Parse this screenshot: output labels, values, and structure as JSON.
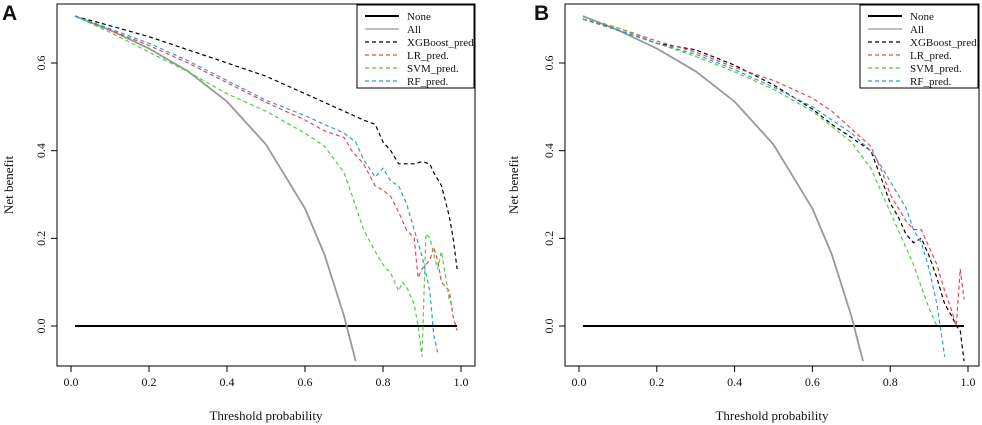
{
  "chart_data": [
    {
      "panel": "A",
      "type": "line",
      "xlabel": "Threshold probability",
      "ylabel": "Net benefit",
      "xlim": [
        0.0,
        1.0
      ],
      "ylim": [
        -0.08,
        0.72
      ],
      "x_ticks": [
        "0.0",
        "0.2",
        "0.4",
        "0.6",
        "0.8",
        "1.0"
      ],
      "y_ticks": [
        "0.0",
        "0.2",
        "0.4",
        "0.6"
      ],
      "legend": [
        "None",
        "All",
        "XGBoost_pred.",
        "LR_pred.",
        "SVM_pred.",
        "RF_pred."
      ],
      "series": [
        {
          "name": "None",
          "color": "#000000",
          "dash": "solid",
          "points": [
            [
              0.01,
              0.0
            ],
            [
              0.99,
              0.0
            ]
          ]
        },
        {
          "name": "All",
          "color": "#999999",
          "dash": "solid",
          "points": [
            [
              0.01,
              0.707
            ],
            [
              0.1,
              0.675
            ],
            [
              0.2,
              0.633
            ],
            [
              0.3,
              0.581
            ],
            [
              0.4,
              0.512
            ],
            [
              0.5,
              0.414
            ],
            [
              0.6,
              0.268
            ],
            [
              0.65,
              0.163
            ],
            [
              0.7,
              0.023
            ],
            [
              0.73,
              -0.08
            ]
          ]
        },
        {
          "name": "XGBoost_pred.",
          "color": "#000000",
          "dash": "dashed",
          "points": [
            [
              0.01,
              0.707
            ],
            [
              0.1,
              0.685
            ],
            [
              0.2,
              0.66
            ],
            [
              0.3,
              0.63
            ],
            [
              0.4,
              0.6
            ],
            [
              0.5,
              0.57
            ],
            [
              0.6,
              0.53
            ],
            [
              0.65,
              0.51
            ],
            [
              0.7,
              0.49
            ],
            [
              0.75,
              0.47
            ],
            [
              0.78,
              0.46
            ],
            [
              0.8,
              0.42
            ],
            [
              0.82,
              0.4
            ],
            [
              0.84,
              0.37
            ],
            [
              0.86,
              0.37
            ],
            [
              0.88,
              0.37
            ],
            [
              0.9,
              0.375
            ],
            [
              0.92,
              0.37
            ],
            [
              0.93,
              0.35
            ],
            [
              0.95,
              0.32
            ],
            [
              0.97,
              0.25
            ],
            [
              0.98,
              0.2
            ],
            [
              0.99,
              0.13
            ]
          ]
        },
        {
          "name": "LR_pred.",
          "color": "#e8474f",
          "dash": "dashed",
          "points": [
            [
              0.01,
              0.707
            ],
            [
              0.1,
              0.675
            ],
            [
              0.2,
              0.64
            ],
            [
              0.3,
              0.6
            ],
            [
              0.4,
              0.555
            ],
            [
              0.5,
              0.51
            ],
            [
              0.6,
              0.47
            ],
            [
              0.65,
              0.445
            ],
            [
              0.7,
              0.43
            ],
            [
              0.72,
              0.4
            ],
            [
              0.75,
              0.37
            ],
            [
              0.78,
              0.32
            ],
            [
              0.8,
              0.31
            ],
            [
              0.82,
              0.295
            ],
            [
              0.84,
              0.26
            ],
            [
              0.86,
              0.22
            ],
            [
              0.88,
              0.2
            ],
            [
              0.89,
              0.11
            ],
            [
              0.9,
              0.13
            ],
            [
              0.92,
              0.15
            ],
            [
              0.93,
              0.18
            ],
            [
              0.94,
              0.15
            ],
            [
              0.95,
              0.1
            ],
            [
              0.97,
              0.08
            ],
            [
              0.98,
              0.02
            ],
            [
              0.99,
              -0.01
            ]
          ]
        },
        {
          "name": "SVM_pred.",
          "color": "#55cc44",
          "dash": "dashed",
          "points": [
            [
              0.01,
              0.707
            ],
            [
              0.1,
              0.67
            ],
            [
              0.2,
              0.625
            ],
            [
              0.3,
              0.58
            ],
            [
              0.4,
              0.53
            ],
            [
              0.5,
              0.49
            ],
            [
              0.6,
              0.44
            ],
            [
              0.65,
              0.41
            ],
            [
              0.7,
              0.35
            ],
            [
              0.72,
              0.3
            ],
            [
              0.75,
              0.22
            ],
            [
              0.78,
              0.17
            ],
            [
              0.8,
              0.14
            ],
            [
              0.82,
              0.12
            ],
            [
              0.84,
              0.08
            ],
            [
              0.85,
              0.1
            ],
            [
              0.86,
              0.09
            ],
            [
              0.88,
              0.05
            ],
            [
              0.89,
              0.0
            ],
            [
              0.9,
              -0.07
            ],
            [
              0.91,
              0.21
            ],
            [
              0.92,
              0.2
            ],
            [
              0.94,
              0.13
            ],
            [
              0.95,
              0.17
            ],
            [
              0.97,
              0.06
            ],
            [
              0.98,
              0.04
            ]
          ]
        },
        {
          "name": "RF_pred.",
          "color": "#3399dd",
          "dash": "dashed",
          "points": [
            [
              0.01,
              0.707
            ],
            [
              0.1,
              0.678
            ],
            [
              0.2,
              0.645
            ],
            [
              0.3,
              0.605
            ],
            [
              0.4,
              0.56
            ],
            [
              0.5,
              0.515
            ],
            [
              0.6,
              0.48
            ],
            [
              0.65,
              0.46
            ],
            [
              0.7,
              0.44
            ],
            [
              0.73,
              0.42
            ],
            [
              0.75,
              0.38
            ],
            [
              0.78,
              0.34
            ],
            [
              0.8,
              0.36
            ],
            [
              0.82,
              0.33
            ],
            [
              0.84,
              0.32
            ],
            [
              0.86,
              0.28
            ],
            [
              0.88,
              0.22
            ],
            [
              0.9,
              0.16
            ],
            [
              0.92,
              0.08
            ],
            [
              0.93,
              -0.02
            ],
            [
              0.94,
              -0.06
            ]
          ]
        }
      ]
    },
    {
      "panel": "B",
      "type": "line",
      "xlabel": "Threshold probability",
      "ylabel": "Net benefit",
      "xlim": [
        0.0,
        1.0
      ],
      "ylim": [
        -0.08,
        0.72
      ],
      "x_ticks": [
        "0.0",
        "0.2",
        "0.4",
        "0.6",
        "0.8",
        "1.0"
      ],
      "y_ticks": [
        "0.0",
        "0.2",
        "0.4",
        "0.6"
      ],
      "legend": [
        "None",
        "All",
        "XGBoost_pred.",
        "LR_pred.",
        "SVM_pred.",
        "RF_pred."
      ],
      "series": [
        {
          "name": "None",
          "color": "#000000",
          "dash": "solid",
          "points": [
            [
              0.01,
              0.0
            ],
            [
              0.99,
              0.0
            ]
          ]
        },
        {
          "name": "All",
          "color": "#999999",
          "dash": "solid",
          "points": [
            [
              0.01,
              0.707
            ],
            [
              0.1,
              0.675
            ],
            [
              0.2,
              0.633
            ],
            [
              0.3,
              0.581
            ],
            [
              0.4,
              0.512
            ],
            [
              0.5,
              0.414
            ],
            [
              0.6,
              0.268
            ],
            [
              0.65,
              0.163
            ],
            [
              0.7,
              0.023
            ],
            [
              0.73,
              -0.08
            ]
          ]
        },
        {
          "name": "XGBoost_pred.",
          "color": "#000000",
          "dash": "dashed",
          "points": [
            [
              0.01,
              0.7
            ],
            [
              0.1,
              0.675
            ],
            [
              0.2,
              0.645
            ],
            [
              0.3,
              0.63
            ],
            [
              0.4,
              0.595
            ],
            [
              0.5,
              0.55
            ],
            [
              0.6,
              0.495
            ],
            [
              0.65,
              0.46
            ],
            [
              0.7,
              0.43
            ],
            [
              0.75,
              0.4
            ],
            [
              0.78,
              0.33
            ],
            [
              0.8,
              0.28
            ],
            [
              0.82,
              0.25
            ],
            [
              0.84,
              0.21
            ],
            [
              0.86,
              0.19
            ],
            [
              0.88,
              0.2
            ],
            [
              0.9,
              0.16
            ],
            [
              0.92,
              0.11
            ],
            [
              0.94,
              0.05
            ],
            [
              0.96,
              0.02
            ],
            [
              0.97,
              0.0
            ],
            [
              0.98,
              -0.01
            ],
            [
              0.99,
              -0.08
            ]
          ]
        },
        {
          "name": "LR_pred.",
          "color": "#e8474f",
          "dash": "dashed",
          "points": [
            [
              0.01,
              0.7
            ],
            [
              0.1,
              0.68
            ],
            [
              0.2,
              0.65
            ],
            [
              0.3,
              0.625
            ],
            [
              0.4,
              0.59
            ],
            [
              0.5,
              0.56
            ],
            [
              0.6,
              0.52
            ],
            [
              0.65,
              0.49
            ],
            [
              0.7,
              0.45
            ],
            [
              0.75,
              0.41
            ],
            [
              0.78,
              0.35
            ],
            [
              0.8,
              0.3
            ],
            [
              0.82,
              0.27
            ],
            [
              0.84,
              0.24
            ],
            [
              0.86,
              0.22
            ],
            [
              0.88,
              0.22
            ],
            [
              0.9,
              0.18
            ],
            [
              0.92,
              0.14
            ],
            [
              0.94,
              0.08
            ],
            [
              0.96,
              0.03
            ],
            [
              0.97,
              0.0
            ],
            [
              0.98,
              0.13
            ],
            [
              0.99,
              0.06
            ]
          ]
        },
        {
          "name": "SVM_pred.",
          "color": "#55cc44",
          "dash": "dashed",
          "points": [
            [
              0.01,
              0.705
            ],
            [
              0.1,
              0.68
            ],
            [
              0.2,
              0.645
            ],
            [
              0.3,
              0.615
            ],
            [
              0.4,
              0.58
            ],
            [
              0.5,
              0.54
            ],
            [
              0.6,
              0.49
            ],
            [
              0.65,
              0.455
            ],
            [
              0.7,
              0.42
            ],
            [
              0.75,
              0.36
            ],
            [
              0.78,
              0.3
            ],
            [
              0.8,
              0.26
            ],
            [
              0.82,
              0.22
            ],
            [
              0.84,
              0.18
            ],
            [
              0.86,
              0.14
            ],
            [
              0.88,
              0.09
            ],
            [
              0.9,
              0.04
            ],
            [
              0.92,
              0.0
            ]
          ]
        },
        {
          "name": "RF_pred.",
          "color": "#3399dd",
          "dash": "dashed",
          "points": [
            [
              0.01,
              0.7
            ],
            [
              0.1,
              0.675
            ],
            [
              0.2,
              0.645
            ],
            [
              0.3,
              0.62
            ],
            [
              0.4,
              0.585
            ],
            [
              0.5,
              0.545
            ],
            [
              0.6,
              0.5
            ],
            [
              0.65,
              0.47
            ],
            [
              0.7,
              0.44
            ],
            [
              0.75,
              0.4
            ],
            [
              0.78,
              0.36
            ],
            [
              0.8,
              0.33
            ],
            [
              0.82,
              0.3
            ],
            [
              0.84,
              0.27
            ],
            [
              0.86,
              0.22
            ],
            [
              0.88,
              0.19
            ],
            [
              0.9,
              0.13
            ],
            [
              0.92,
              0.05
            ],
            [
              0.93,
              -0.01
            ],
            [
              0.94,
              -0.07
            ]
          ]
        }
      ]
    }
  ]
}
